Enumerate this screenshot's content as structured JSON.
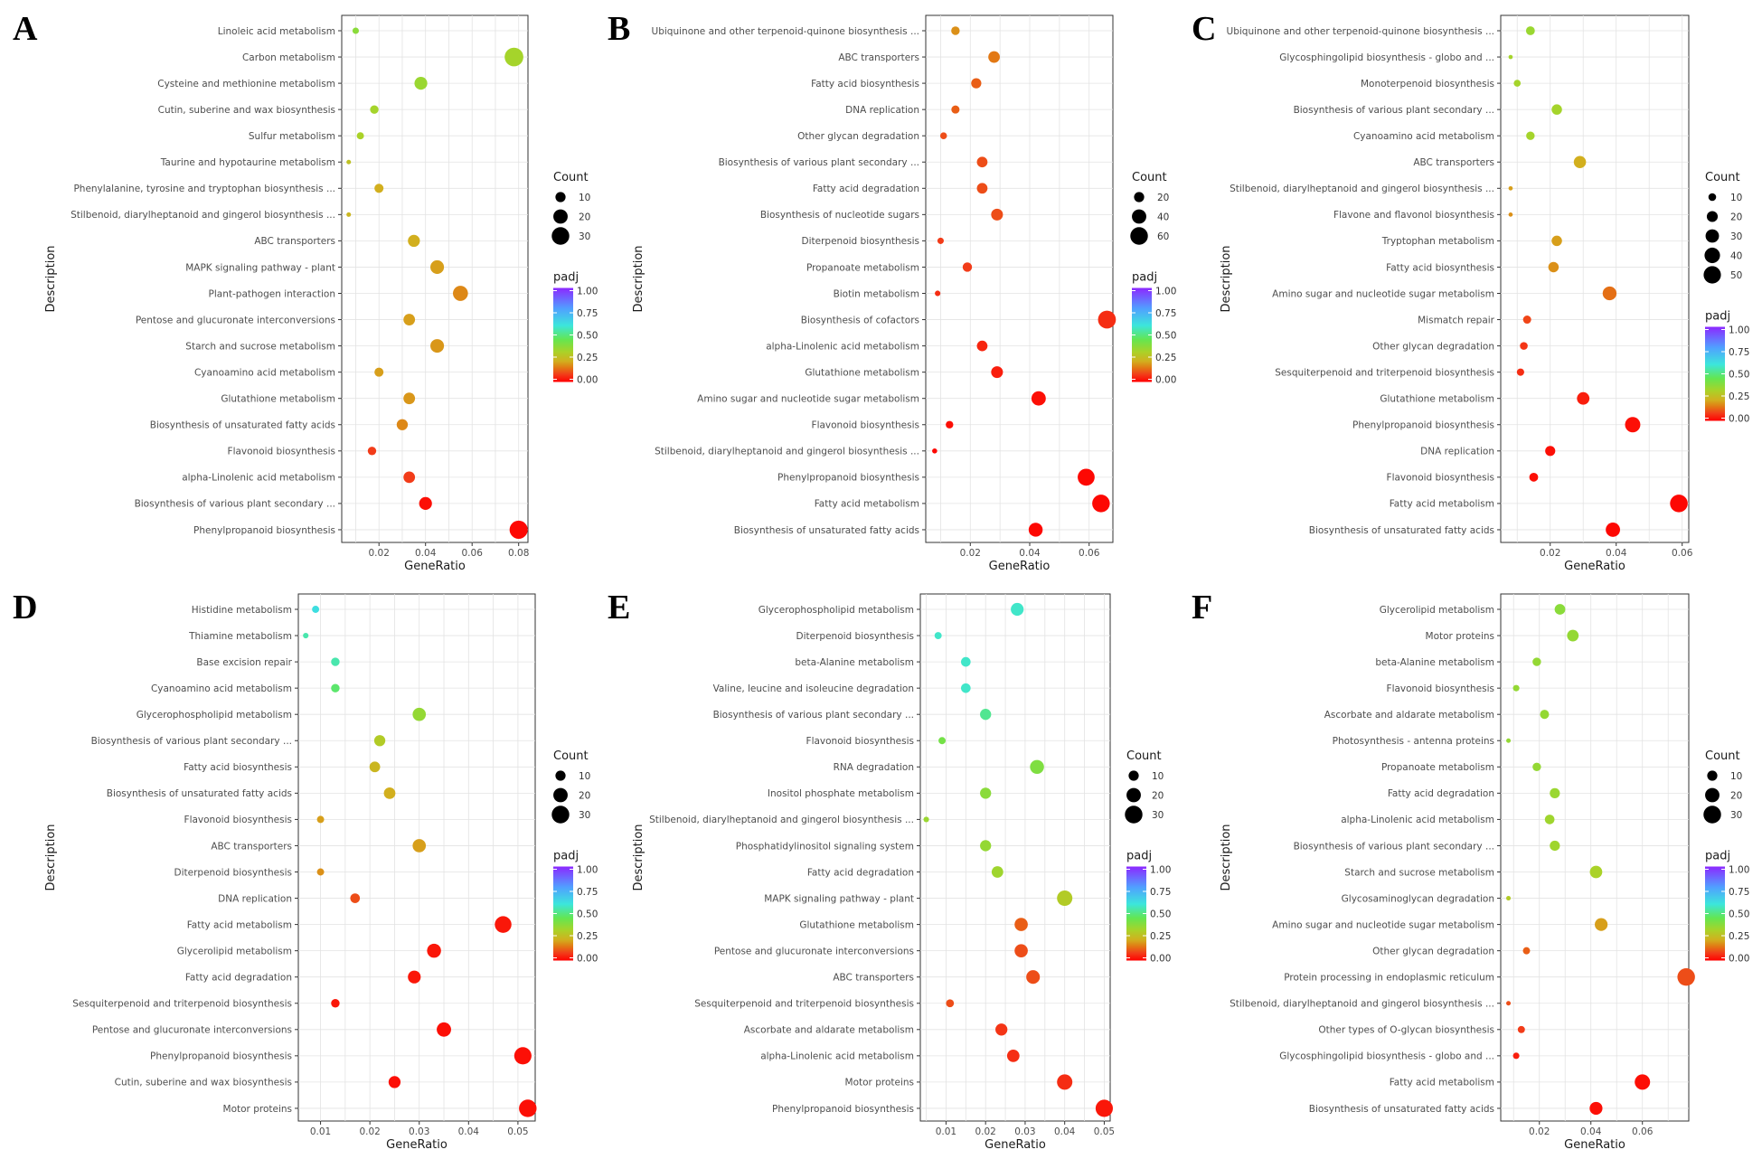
{
  "figure": {
    "panels_order": [
      "A",
      "B",
      "C",
      "D",
      "E",
      "F"
    ]
  },
  "chart_data": [
    {
      "panel": "A",
      "type": "scatter",
      "xlabel": "GeneRatio",
      "ylabel": "Description",
      "xticks": [
        0.02,
        0.04,
        0.06,
        0.08
      ],
      "xtick_labels": [
        "0.02",
        "0.04",
        "0.06",
        "0.08"
      ],
      "xlim": [
        0.004,
        0.084
      ],
      "size_legend_title": "Count",
      "size_legend_values": [
        10,
        20,
        30
      ],
      "size_legend_labels": [
        "10",
        "20",
        "30"
      ],
      "size_max": 35,
      "color_legend_title": "padj",
      "color_legend_ticks": [
        "1.00",
        "0.75",
        "0.50",
        "0.25",
        "0.00"
      ],
      "categories": [
        "Linoleic acid metabolism",
        "Carbon metabolism",
        "Cysteine and methionine metabolism",
        "Cutin, suberine and wax biosynthesis",
        "Sulfur metabolism",
        "Taurine and hypotaurine metabolism",
        "Phenylalanine, tyrosine and tryptophan biosynthesis ...",
        "Stilbenoid, diarylheptanoid and gingerol biosynthesis ...",
        "ABC transporters",
        "MAPK signaling pathway - plant",
        "Plant-pathogen interaction",
        "Pentose and glucuronate interconversions",
        "Starch and sucrose metabolism",
        "Cyanoamino acid metabolism",
        "Glutathione metabolism",
        "Biosynthesis of unsaturated fatty acids",
        "Flavonoid biosynthesis",
        "alpha-Linolenic acid metabolism",
        "Biosynthesis of various plant secondary ...",
        "Phenylpropanoid biosynthesis"
      ],
      "gene_ratio": [
        0.01,
        0.078,
        0.038,
        0.018,
        0.012,
        0.007,
        0.02,
        0.007,
        0.035,
        0.045,
        0.055,
        0.033,
        0.045,
        0.02,
        0.033,
        0.03,
        0.017,
        0.033,
        0.04,
        0.08
      ],
      "count": [
        4,
        34,
        16,
        7,
        5,
        2,
        8,
        2,
        14,
        18,
        22,
        13,
        18,
        8,
        13,
        12,
        7,
        13,
        16,
        32
      ],
      "padj": [
        0.38,
        0.33,
        0.35,
        0.33,
        0.32,
        0.27,
        0.22,
        0.24,
        0.22,
        0.2,
        0.17,
        0.2,
        0.19,
        0.2,
        0.19,
        0.17,
        0.08,
        0.08,
        0.02,
        0.01
      ]
    },
    {
      "panel": "B",
      "type": "scatter",
      "xlabel": "GeneRatio",
      "ylabel": "Description",
      "xticks": [
        0.02,
        0.04,
        0.06
      ],
      "xtick_labels": [
        "0.02",
        "0.04",
        "0.06"
      ],
      "xlim": [
        0.005,
        0.068
      ],
      "size_legend_title": "Count",
      "size_legend_values": [
        20,
        40,
        60
      ],
      "size_legend_labels": [
        "20",
        "40",
        "60"
      ],
      "size_max": 70,
      "color_legend_title": "padj",
      "color_legend_ticks": [
        "1.00",
        "0.75",
        "0.50",
        "0.25",
        "0.00"
      ],
      "categories": [
        "Ubiquinone and other terpenoid-quinone biosynthesis ...",
        "ABC transporters",
        "Fatty acid biosynthesis",
        "DNA replication",
        "Other glycan degradation",
        "Biosynthesis of various plant secondary ...",
        "Fatty acid degradation",
        "Biosynthesis of nucleotide sugars",
        "Diterpenoid biosynthesis",
        "Propanoate metabolism",
        "Biotin metabolism",
        "Biosynthesis of cofactors",
        "alpha-Linolenic acid metabolism",
        "Glutathione metabolism",
        "Amino sugar and nucleotide sugar metabolism",
        "Flavonoid biosynthesis",
        "Stilbenoid, diarylheptanoid and gingerol biosynthesis ...",
        "Phenylpropanoid biosynthesis",
        "Fatty acid metabolism",
        "Biosynthesis of unsaturated fatty acids"
      ],
      "gene_ratio": [
        0.015,
        0.028,
        0.022,
        0.015,
        0.011,
        0.024,
        0.024,
        0.029,
        0.01,
        0.019,
        0.009,
        0.066,
        0.024,
        0.029,
        0.043,
        0.013,
        0.008,
        0.059,
        0.064,
        0.042
      ],
      "count": [
        14,
        26,
        20,
        13,
        9,
        22,
        22,
        27,
        8,
        17,
        6,
        62,
        22,
        27,
        40,
        11,
        5,
        56,
        60,
        38
      ],
      "padj": [
        0.18,
        0.15,
        0.12,
        0.12,
        0.1,
        0.1,
        0.1,
        0.1,
        0.08,
        0.08,
        0.06,
        0.06,
        0.05,
        0.04,
        0.02,
        0.02,
        0.01,
        0.01,
        0.01,
        0.01
      ]
    },
    {
      "panel": "C",
      "type": "scatter",
      "xlabel": "GeneRatio",
      "ylabel": "Description",
      "xticks": [
        0.02,
        0.04,
        0.06
      ],
      "xtick_labels": [
        "0.02",
        "0.04",
        "0.06"
      ],
      "xlim": [
        0.005,
        0.062
      ],
      "size_legend_title": "Count",
      "size_legend_values": [
        10,
        20,
        30,
        40,
        50
      ],
      "size_legend_labels": [
        "10",
        "20",
        "30",
        "40",
        "50"
      ],
      "size_max": 60,
      "color_legend_title": "padj",
      "color_legend_ticks": [
        "1.00",
        "0.75",
        "0.50",
        "0.25",
        "0.00"
      ],
      "categories": [
        "Ubiquinone and other terpenoid-quinone biosynthesis ...",
        "Glycosphingolipid biosynthesis - globo and ...",
        "Monoterpenoid biosynthesis",
        "Biosynthesis of various plant secondary ...",
        "Cyanoamino acid metabolism",
        "ABC transporters",
        "Stilbenoid, diarylheptanoid and gingerol biosynthesis ...",
        "Flavone and flavonol biosynthesis",
        "Tryptophan metabolism",
        "Fatty acid biosynthesis",
        "Amino sugar and nucleotide sugar metabolism",
        "Mismatch repair",
        "Other glycan degradation",
        "Sesquiterpenoid and triterpenoid biosynthesis",
        "Glutathione metabolism",
        "Phenylpropanoid biosynthesis",
        "DNA replication",
        "Flavonoid biosynthesis",
        "Fatty acid metabolism",
        "Biosynthesis of unsaturated fatty acids"
      ],
      "gene_ratio": [
        0.014,
        0.008,
        0.01,
        0.022,
        0.014,
        0.029,
        0.008,
        0.008,
        0.022,
        0.021,
        0.038,
        0.013,
        0.012,
        0.011,
        0.03,
        0.045,
        0.02,
        0.015,
        0.059,
        0.039
      ],
      "count": [
        13,
        3,
        8,
        18,
        12,
        25,
        3,
        3,
        18,
        18,
        32,
        11,
        10,
        9,
        26,
        39,
        17,
        13,
        52,
        34
      ],
      "padj": [
        0.35,
        0.33,
        0.33,
        0.33,
        0.33,
        0.22,
        0.2,
        0.18,
        0.2,
        0.18,
        0.14,
        0.09,
        0.07,
        0.06,
        0.04,
        0.02,
        0.02,
        0.02,
        0.01,
        0.01
      ]
    },
    {
      "panel": "D",
      "type": "scatter",
      "xlabel": "GeneRatio",
      "ylabel": "Description",
      "xticks": [
        0.01,
        0.02,
        0.03,
        0.04,
        0.05
      ],
      "xtick_labels": [
        "0.01",
        "0.02",
        "0.03",
        "0.04",
        "0.05"
      ],
      "xlim": [
        0.0055,
        0.0535
      ],
      "size_legend_title": "Count",
      "size_legend_values": [
        10,
        20,
        30
      ],
      "size_legend_labels": [
        "10",
        "20",
        "30"
      ],
      "size_max": 35,
      "color_legend_title": "padj",
      "color_legend_ticks": [
        "1.00",
        "0.75",
        "0.50",
        "0.25",
        "0.00"
      ],
      "categories": [
        "Histidine metabolism",
        "Thiamine metabolism",
        "Base excision repair",
        "Cyanoamino acid metabolism",
        "Glycerophospholipid metabolism",
        "Biosynthesis of various plant secondary ...",
        "Fatty acid biosynthesis",
        "Biosynthesis of unsaturated fatty acids",
        "Flavonoid biosynthesis",
        "ABC transporters",
        "Diterpenoid biosynthesis",
        "DNA replication",
        "Fatty acid metabolism",
        "Glycerolipid metabolism",
        "Fatty acid degradation",
        "Sesquiterpenoid and triterpenoid biosynthesis",
        "Pentose and glucuronate interconversions",
        "Phenylpropanoid biosynthesis",
        "Cutin, suberine and wax biosynthesis",
        "Motor proteins"
      ],
      "gene_ratio": [
        0.009,
        0.007,
        0.013,
        0.013,
        0.03,
        0.022,
        0.021,
        0.024,
        0.01,
        0.03,
        0.01,
        0.017,
        0.047,
        0.033,
        0.029,
        0.013,
        0.035,
        0.051,
        0.025,
        0.052
      ],
      "count": [
        5,
        3,
        7,
        7,
        17,
        12,
        11,
        13,
        5,
        17,
        5,
        9,
        27,
        19,
        16,
        7,
        20,
        29,
        14,
        30
      ],
      "padj": [
        0.62,
        0.55,
        0.55,
        0.48,
        0.36,
        0.3,
        0.24,
        0.22,
        0.2,
        0.2,
        0.18,
        0.1,
        0.03,
        0.03,
        0.03,
        0.03,
        0.02,
        0.02,
        0.02,
        0.02
      ]
    },
    {
      "panel": "E",
      "type": "scatter",
      "xlabel": "GeneRatio",
      "ylabel": "Description",
      "xticks": [
        0.01,
        0.02,
        0.03,
        0.04,
        0.05
      ],
      "xtick_labels": [
        "0.01",
        "0.02",
        "0.03",
        "0.04",
        "0.05"
      ],
      "xlim": [
        0.0035,
        0.0515
      ],
      "size_legend_title": "Count",
      "size_legend_values": [
        10,
        20,
        30
      ],
      "size_legend_labels": [
        "10",
        "20",
        "30"
      ],
      "size_max": 35,
      "color_legend_title": "padj",
      "color_legend_ticks": [
        "1.00",
        "0.75",
        "0.50",
        "0.25",
        "0.00"
      ],
      "categories": [
        "Glycerophospholipid metabolism",
        "Diterpenoid biosynthesis",
        "beta-Alanine metabolism",
        "Valine, leucine and isoleucine degradation",
        "Biosynthesis of various plant secondary ...",
        "Flavonoid biosynthesis",
        "RNA degradation",
        "Inositol phosphate metabolism",
        "Stilbenoid, diarylheptanoid and gingerol biosynthesis ...",
        "Phosphatidylinositol signaling system",
        "Fatty acid degradation",
        "MAPK signaling pathway - plant",
        "Glutathione metabolism",
        "Pentose and glucuronate interconversions",
        "ABC transporters",
        "Sesquiterpenoid and triterpenoid biosynthesis",
        "Ascorbate and aldarate metabolism",
        "alpha-Linolenic acid metabolism",
        "Motor proteins",
        "Phenylpropanoid biosynthesis"
      ],
      "gene_ratio": [
        0.028,
        0.008,
        0.015,
        0.015,
        0.02,
        0.009,
        0.033,
        0.02,
        0.005,
        0.02,
        0.023,
        0.04,
        0.029,
        0.029,
        0.032,
        0.011,
        0.024,
        0.027,
        0.04,
        0.05
      ],
      "count": [
        16,
        5,
        9,
        9,
        12,
        5,
        19,
        12,
        3,
        12,
        13,
        23,
        17,
        17,
        18,
        6,
        14,
        15,
        23,
        29
      ],
      "padj": [
        0.58,
        0.58,
        0.58,
        0.58,
        0.52,
        0.42,
        0.4,
        0.38,
        0.35,
        0.36,
        0.34,
        0.3,
        0.12,
        0.1,
        0.1,
        0.1,
        0.07,
        0.06,
        0.06,
        0.03
      ]
    },
    {
      "panel": "F",
      "type": "scatter",
      "xlabel": "GeneRatio",
      "ylabel": "Description",
      "xticks": [
        0.02,
        0.04,
        0.06
      ],
      "xtick_labels": [
        "0.02",
        "0.04",
        "0.06"
      ],
      "xlim": [
        0.005,
        0.078
      ],
      "size_legend_title": "Count",
      "size_legend_values": [
        10,
        20,
        30
      ],
      "size_legend_labels": [
        "10",
        "20",
        "30"
      ],
      "size_max": 35,
      "color_legend_title": "padj",
      "color_legend_ticks": [
        "1.00",
        "0.75",
        "0.50",
        "0.25",
        "0.00"
      ],
      "categories": [
        "Glycerolipid metabolism",
        "Motor proteins",
        "beta-Alanine metabolism",
        "Flavonoid biosynthesis",
        "Ascorbate and aldarate metabolism",
        "Photosynthesis - antenna proteins",
        "Propanoate metabolism",
        "Fatty acid degradation",
        "alpha-Linolenic acid metabolism",
        "Biosynthesis of various plant secondary ...",
        "Starch and sucrose metabolism",
        "Glycosaminoglycan degradation",
        "Amino sugar and nucleotide sugar metabolism",
        "Other glycan degradation",
        "Protein processing in endoplasmic reticulum",
        "Stilbenoid, diarylheptanoid and gingerol biosynthesis ...",
        "Other types of O-glycan biosynthesis",
        "Glycosphingolipid biosynthesis - globo and ...",
        "Fatty acid metabolism",
        "Biosynthesis of unsaturated fatty acids"
      ],
      "gene_ratio": [
        0.028,
        0.033,
        0.019,
        0.011,
        0.022,
        0.008,
        0.019,
        0.026,
        0.024,
        0.026,
        0.042,
        0.008,
        0.044,
        0.015,
        0.077,
        0.008,
        0.013,
        0.011,
        0.06,
        0.042
      ],
      "count": [
        11,
        13,
        7,
        4,
        8,
        2,
        7,
        10,
        9,
        10,
        15,
        2,
        16,
        5,
        30,
        2,
        5,
        4,
        23,
        16
      ],
      "padj": [
        0.38,
        0.36,
        0.36,
        0.36,
        0.36,
        0.36,
        0.36,
        0.35,
        0.34,
        0.34,
        0.32,
        0.3,
        0.2,
        0.12,
        0.1,
        0.1,
        0.08,
        0.04,
        0.02,
        0.02
      ]
    }
  ]
}
